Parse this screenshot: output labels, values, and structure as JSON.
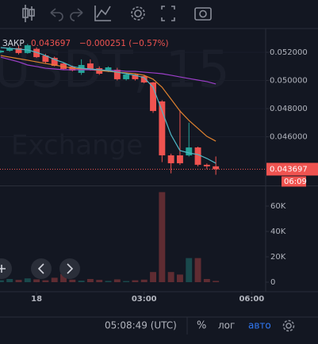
{
  "chart_data": {
    "type": "candlestick",
    "x": [
      -1,
      -0.75,
      -0.5,
      -0.25,
      0,
      0.25,
      0.5,
      0.75,
      1,
      1.25,
      1.5,
      1.75,
      2,
      2.25,
      2.5,
      2.75,
      3,
      3.25,
      3.5,
      3.75,
      4,
      4.25,
      4.5,
      4.75,
      5
    ],
    "open": [
      0.052,
      0.05211,
      0.0523,
      0.05195,
      0.05225,
      0.05177,
      0.05161,
      0.05121,
      0.05099,
      0.05054,
      0.05121,
      0.05087,
      0.05065,
      0.05076,
      0.05009,
      0.05042,
      0.05031,
      0.04986,
      0.04851,
      0.04468,
      0.04468,
      0.04468,
      0.04524,
      0.04401,
      0.0439
    ],
    "high": [
      0.05215,
      0.0524,
      0.0525,
      0.0526,
      0.05235,
      0.0519,
      0.0517,
      0.0513,
      0.05105,
      0.0515,
      0.0515,
      0.051,
      0.051,
      0.0509,
      0.0505,
      0.0505,
      0.0504,
      0.0499,
      0.0486,
      0.0448,
      0.0479,
      0.047,
      0.0453,
      0.0441,
      0.0446
    ],
    "low": [
      0.05195,
      0.05205,
      0.05185,
      0.0519,
      0.0516,
      0.0512,
      0.051,
      0.05075,
      0.05065,
      0.0504,
      0.0507,
      0.0504,
      0.0506,
      0.05,
      0.05,
      0.05,
      0.0498,
      0.0477,
      0.0442,
      0.0434,
      0.044,
      0.0446,
      0.0439,
      0.0437,
      0.0433
    ],
    "close": [
      0.05211,
      0.0523,
      0.05195,
      0.0525,
      0.05166,
      0.05132,
      0.05104,
      0.05082,
      0.05071,
      0.0511,
      0.05076,
      0.05048,
      0.05093,
      0.05009,
      0.05042,
      0.05009,
      0.04986,
      0.04783,
      0.04468,
      0.04412,
      0.04412,
      0.04524,
      0.04401,
      0.0439,
      0.043697
    ],
    "volume": [
      1500,
      2500,
      1800,
      3000,
      2200,
      1500,
      3500,
      6500,
      2000,
      1200,
      2500,
      1800,
      1000,
      2200,
      900,
      1500,
      2000,
      8000,
      71000,
      8000,
      6000,
      19000,
      19000,
      2500,
      1000
    ],
    "up_color": "#26a69a",
    "down_color": "#ef5350",
    "overlays": [
      {
        "color": "#e0822f",
        "values": [
          0.05177,
          0.05166,
          0.05155,
          0.05144,
          0.05132,
          0.05121,
          0.0511,
          0.05099,
          0.05087,
          0.05082,
          0.05076,
          0.05071,
          0.05065,
          0.05059,
          0.05054,
          0.05048,
          0.05037,
          0.05009,
          0.04952,
          0.04868,
          0.04783,
          0.04716,
          0.0466,
          0.04603,
          0.04569
        ]
      },
      {
        "color": "#9c3fc9",
        "values": [
          0.05166,
          0.05149,
          0.05132,
          0.0511,
          0.05099,
          0.05087,
          0.05082,
          0.05076,
          0.05076,
          0.05076,
          0.05076,
          0.05076,
          0.05071,
          0.05071,
          0.05065,
          0.05065,
          0.05059,
          0.05054,
          0.05048,
          0.05037,
          0.05025,
          0.05014,
          0.05003,
          0.04992,
          0.04975
        ]
      },
      {
        "color": "#4fb7c5",
        "values": [
          0.05234,
          0.05228,
          0.05223,
          0.05217,
          0.052,
          0.05177,
          0.05149,
          0.05127,
          0.05099,
          0.05087,
          0.05082,
          0.05076,
          0.05071,
          0.05059,
          0.05048,
          0.05037,
          0.0502,
          0.04952,
          0.04783,
          0.04614,
          0.04502,
          0.04485,
          0.04474,
          0.04446,
          0.04412
        ]
      }
    ],
    "xlim": [
      -1.02,
      6.39
    ],
    "xticks": [
      {
        "value": 0,
        "label": "18"
      },
      {
        "value": 3,
        "label": "03:00"
      },
      {
        "value": 6,
        "label": "06:00"
      }
    ],
    "ylim": [
      0.04254,
      0.05369
    ],
    "yticks": [
      {
        "value": 0.052,
        "label": "0.052000"
      },
      {
        "value": 0.05,
        "label": "0.050000"
      },
      {
        "value": 0.048,
        "label": "0.048000"
      },
      {
        "value": 0.046,
        "label": "0.046000"
      }
    ],
    "volume_ylim": [
      -7500,
      75000
    ],
    "volume_yticks": [
      {
        "value": 60000,
        "label": "60K"
      },
      {
        "value": 40000,
        "label": "40K"
      },
      {
        "value": 20000,
        "label": "20K"
      },
      0
    ],
    "legend": {
      "label": "ЗАКР",
      "change": "−0.000251 (−0.57%)"
    },
    "countdown": "06:09",
    "watermark": [
      "USDT, 15",
      "Exchange"
    ]
  },
  "footer": {
    "time": "05:08:49 (UTC)",
    "percent": "%",
    "log": "лог",
    "auto": "авто"
  }
}
